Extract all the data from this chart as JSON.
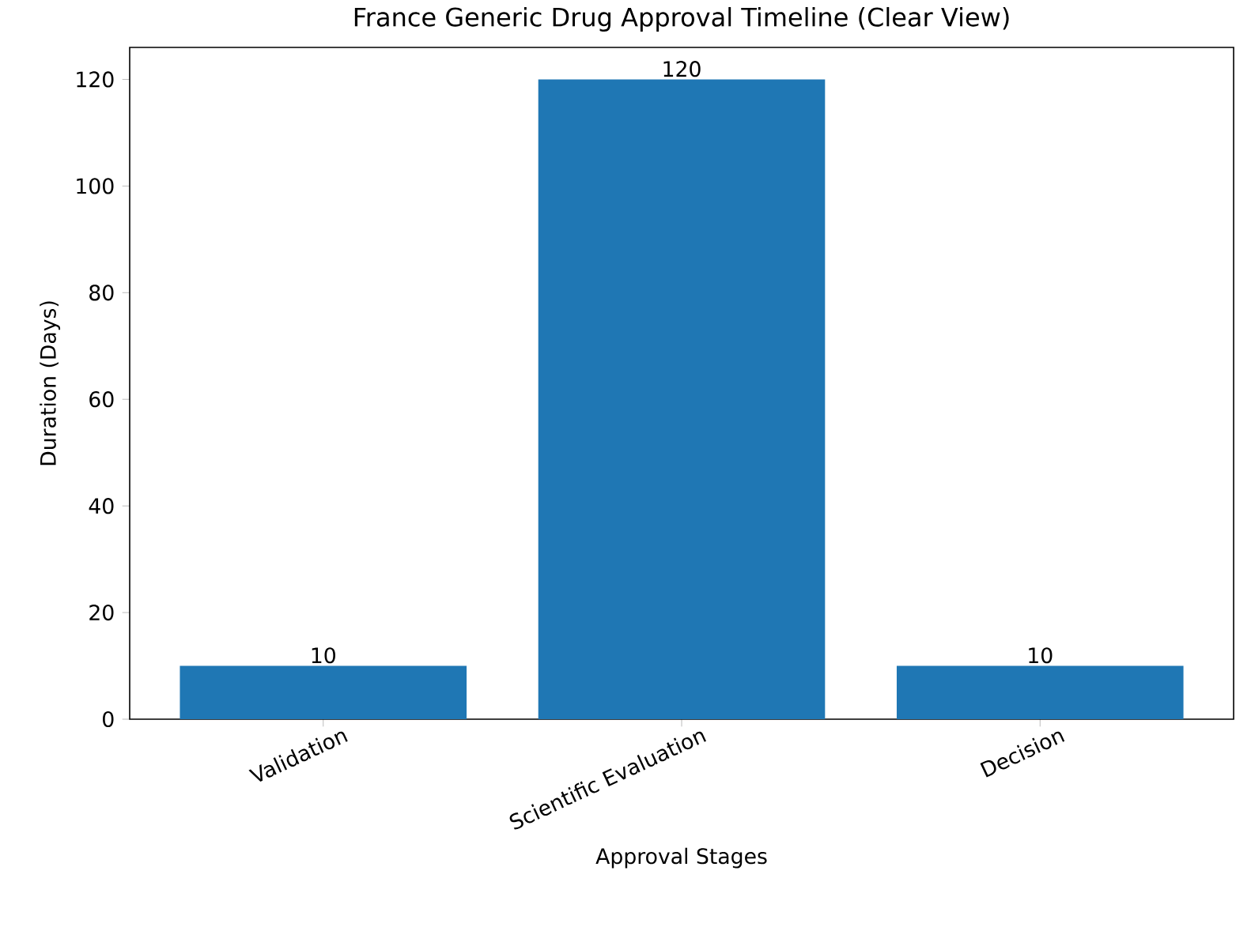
{
  "chart_data": {
    "type": "bar",
    "title": "France Generic Drug Approval Timeline (Clear View)",
    "xlabel": "Approval Stages",
    "ylabel": "Duration (Days)",
    "categories": [
      "Validation",
      "Scientific Evaluation",
      "Decision"
    ],
    "values": [
      10,
      120,
      10
    ],
    "color": "#1f77b4",
    "ylim": [
      0,
      126
    ],
    "yticks": [
      0,
      20,
      40,
      60,
      80,
      100,
      120
    ],
    "data_labels": true
  }
}
